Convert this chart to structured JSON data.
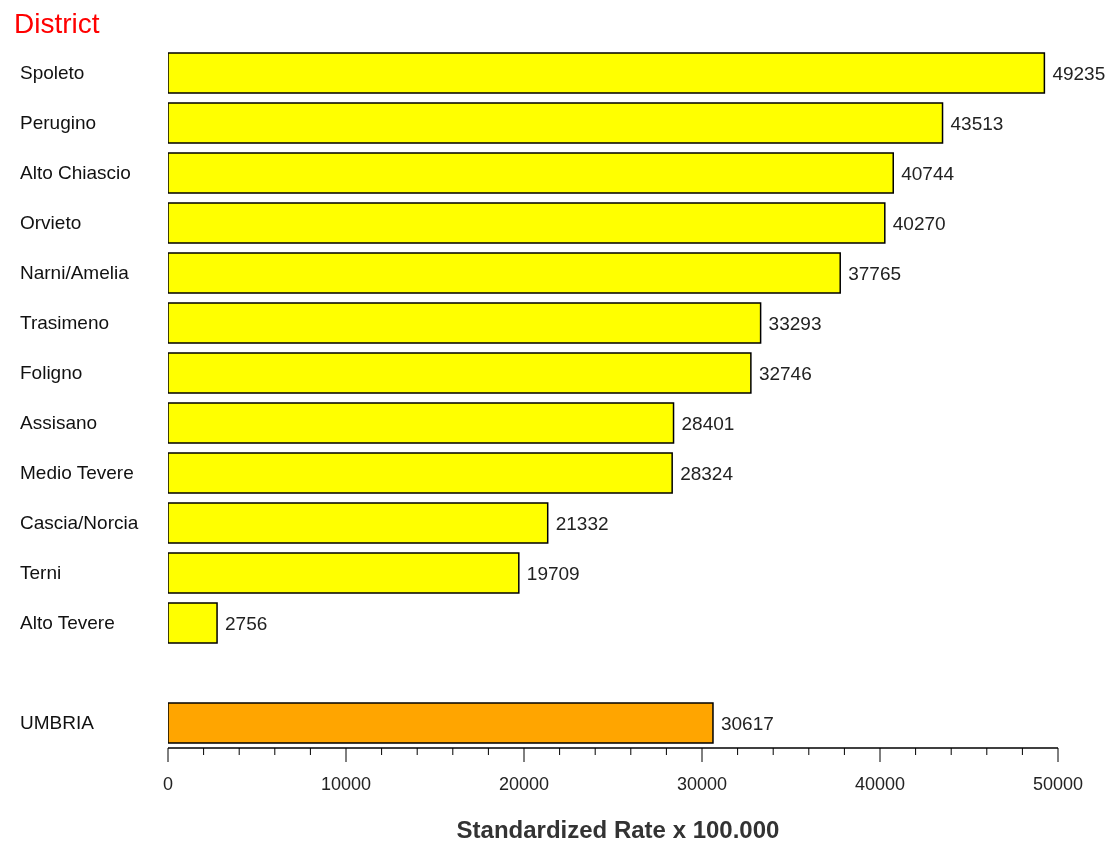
{
  "chart_data": {
    "type": "bar",
    "orientation": "horizontal",
    "title": "District",
    "xlabel": "Standardized Rate x 100.000",
    "categories": [
      "Spoleto",
      "Perugino",
      "Alto Chiascio",
      "Orvieto",
      "Narni/Amelia",
      "Trasimeno",
      "Foligno",
      "Assisano",
      "Medio Tevere",
      "Cascia/Norcia",
      "Terni",
      "Alto Tevere",
      null,
      "UMBRIA"
    ],
    "values": [
      49235,
      43513,
      40744,
      40270,
      37765,
      33293,
      32746,
      28401,
      28324,
      21332,
      19709,
      2756,
      null,
      30617
    ],
    "colors": [
      "#ffff00",
      "#ffff00",
      "#ffff00",
      "#ffff00",
      "#ffff00",
      "#ffff00",
      "#ffff00",
      "#ffff00",
      "#ffff00",
      "#ffff00",
      "#ffff00",
      "#ffff00",
      "#ffff00",
      "#ffa500"
    ],
    "xlim": [
      0,
      50000
    ],
    "xticks": [
      0,
      {
        "value": 2000,
        "label": null
      },
      {
        "value": 4000,
        "label": null
      },
      {
        "value": 6000,
        "label": null
      },
      {
        "value": 8000,
        "label": null
      },
      10000,
      {
        "value": 12000,
        "label": null
      },
      {
        "value": 14000,
        "label": null
      },
      {
        "value": 16000,
        "label": null
      },
      {
        "value": 18000,
        "label": null
      },
      20000,
      {
        "value": 22000,
        "label": null
      },
      {
        "value": 24000,
        "label": null
      },
      {
        "value": 26000,
        "label": null
      },
      {
        "value": 28000,
        "label": null
      },
      30000,
      {
        "value": 32000,
        "label": null
      },
      {
        "value": 34000,
        "label": null
      },
      {
        "value": 36000,
        "label": null
      },
      {
        "value": 38000,
        "label": null
      },
      40000,
      {
        "value": 42000,
        "label": null
      },
      {
        "value": 44000,
        "label": null
      },
      {
        "value": 46000,
        "label": null
      },
      {
        "value": 48000,
        "label": null
      },
      50000
    ],
    "data_labels": true,
    "grid": false,
    "legend": false
  }
}
